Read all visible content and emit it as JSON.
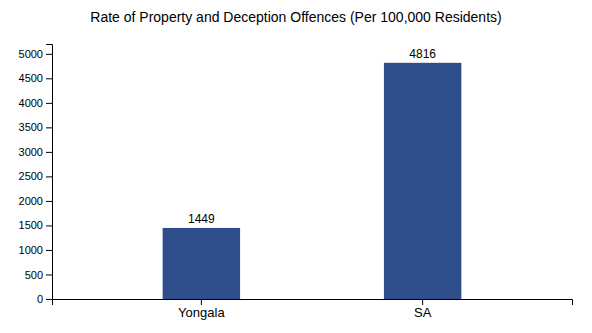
{
  "chart_data": {
    "type": "bar",
    "title": "Rate of Property and Deception Offences (Per 100,000 Residents)",
    "categories": [
      "Yongala",
      "SA"
    ],
    "values": [
      1449,
      4816
    ],
    "color": "#2e4e8c",
    "ylim": [
      0,
      5200
    ],
    "yticks": [
      0,
      500,
      1000,
      1500,
      2000,
      2500,
      3000,
      3500,
      4000,
      4500,
      5000
    ],
    "grid": false,
    "data_labels": true
  }
}
